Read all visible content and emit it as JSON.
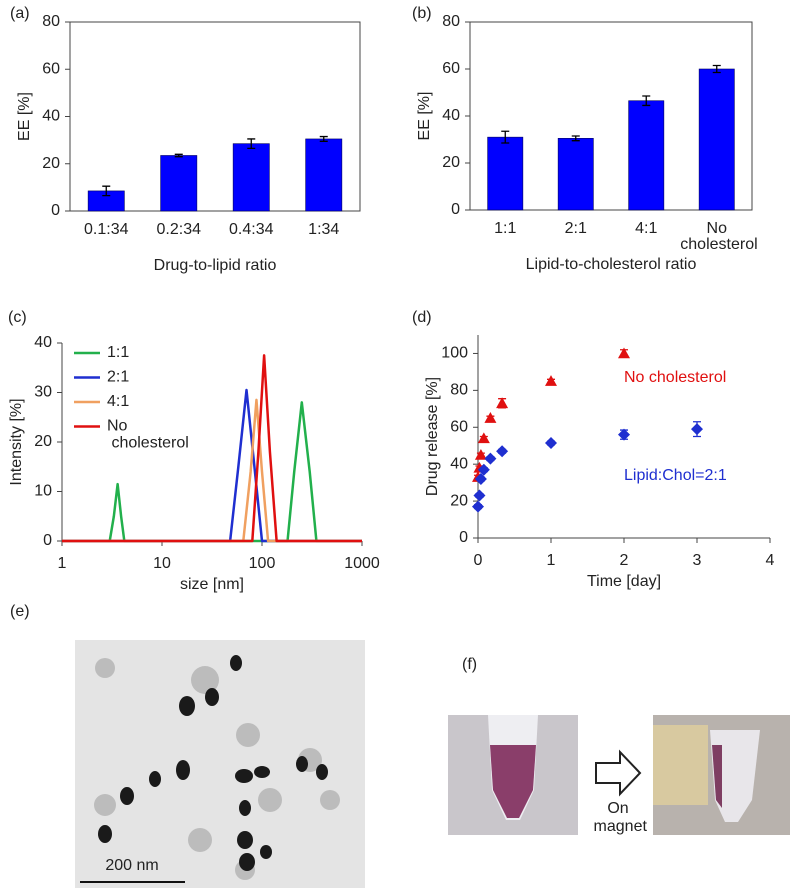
{
  "chart_data": [
    {
      "type": "bar",
      "panel_label": "(a)",
      "x_label": "Drug-to-lipid ratio",
      "y_label": "EE [%]",
      "categories": [
        "0.1:34",
        "0.2:34",
        "0.4:34",
        "1:34"
      ],
      "values": [
        8.5,
        23.5,
        28.5,
        30.5
      ],
      "errors": [
        2,
        0.5,
        2,
        1
      ],
      "color": "#0000ff",
      "ylim": [
        0,
        80
      ],
      "yticks": [
        0,
        20,
        40,
        60,
        80
      ],
      "frame": true
    },
    {
      "type": "bar",
      "panel_label": "(b)",
      "x_label": "Lipid-to-cholesterol ratio",
      "y_label": "EE [%]",
      "categories": [
        "1:1",
        "2:1",
        "4:1",
        "No cholesterol"
      ],
      "values": [
        31,
        30.5,
        46.5,
        60
      ],
      "errors": [
        2.5,
        1,
        2,
        1.5
      ],
      "color": "#0000ff",
      "ylim": [
        0,
        80
      ],
      "yticks": [
        0,
        20,
        40,
        60,
        80
      ],
      "frame": true
    },
    {
      "type": "line",
      "panel_label": "(c)",
      "x_label": "size [nm]",
      "y_label": "Intensity [%]",
      "xscale": "log",
      "xlim": [
        1,
        1000
      ],
      "xticks": [
        1,
        10,
        100,
        1000
      ],
      "ylim": [
        0,
        40
      ],
      "yticks": [
        0,
        10,
        20,
        30,
        40
      ],
      "legend": "upper left",
      "series": [
        {
          "name": "1:1",
          "color": "#22b04c",
          "x": [
            1,
            3.0,
            3.3,
            3.6,
            3.9,
            4.2,
            180,
            210,
            250,
            300,
            350,
            1000
          ],
          "values": [
            0,
            0,
            5,
            11.5,
            5,
            0,
            0,
            14,
            28,
            14,
            0,
            0
          ]
        },
        {
          "name": "2:1",
          "color": "#1f2fd0",
          "x": [
            1,
            48,
            58,
            70,
            84,
            100,
            1000
          ],
          "values": [
            0,
            0,
            15,
            30.5,
            15,
            0,
            0
          ]
        },
        {
          "name": "4:1",
          "color": "#f0a060",
          "x": [
            1,
            65,
            77,
            88,
            100,
            115,
            1000
          ],
          "values": [
            0,
            0,
            14,
            28.5,
            14,
            0,
            0
          ]
        },
        {
          "name": "No cholesterol",
          "color": "#e01010",
          "x": [
            1,
            80,
            92,
            105,
            120,
            140,
            1000
          ],
          "values": [
            0,
            0,
            18,
            37.5,
            18,
            0,
            0
          ]
        }
      ]
    },
    {
      "type": "scatter",
      "panel_label": "(d)",
      "x_label": "Time [day]",
      "y_label": "Drug release [%]",
      "xlim": [
        0,
        4
      ],
      "xticks": [
        0,
        1,
        2,
        3,
        4
      ],
      "ylim": [
        0,
        110
      ],
      "yticks": [
        0,
        20,
        40,
        60,
        80,
        100
      ],
      "series": [
        {
          "name": "No cholesterol",
          "color": "#e01010",
          "marker": "triangle",
          "x": [
            0,
            0.02,
            0.04,
            0.08,
            0.17,
            0.33,
            1,
            2
          ],
          "values": [
            33,
            38,
            45,
            54,
            65,
            73,
            85,
            100
          ],
          "errors": [
            1,
            1,
            1,
            1,
            1,
            2.5,
            1,
            2
          ]
        },
        {
          "name": "Lipid:Chol=2:1",
          "color": "#1f2fd0",
          "marker": "diamond",
          "x": [
            0,
            0.02,
            0.04,
            0.08,
            0.17,
            0.33,
            1,
            2,
            3
          ],
          "values": [
            17,
            23,
            32,
            37,
            43,
            47,
            51.5,
            56,
            59
          ],
          "errors": [
            1,
            1,
            1,
            1,
            1,
            1,
            1,
            2.5,
            4
          ]
        }
      ]
    }
  ],
  "images": [
    {
      "panel_label": "(e)",
      "scale_bar": "200 nm"
    },
    {
      "panel_label": "(f)",
      "arrow_text": "On magnet"
    }
  ]
}
